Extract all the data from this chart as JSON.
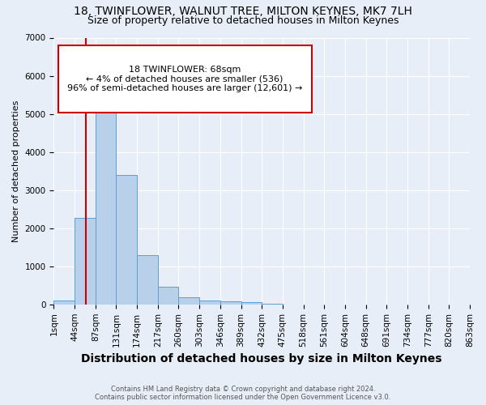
{
  "title": "18, TWINFLOWER, WALNUT TREE, MILTON KEYNES, MK7 7LH",
  "subtitle": "Size of property relative to detached houses in Milton Keynes",
  "xlabel": "Distribution of detached houses by size in Milton Keynes",
  "ylabel": "Number of detached properties",
  "footer_line1": "Contains HM Land Registry data © Crown copyright and database right 2024.",
  "footer_line2": "Contains public sector information licensed under the Open Government Licence v3.0.",
  "bin_labels": [
    "1sqm",
    "44sqm",
    "87sqm",
    "131sqm",
    "174sqm",
    "217sqm",
    "260sqm",
    "303sqm",
    "346sqm",
    "389sqm",
    "432sqm",
    "475sqm",
    "518sqm",
    "561sqm",
    "604sqm",
    "648sqm",
    "691sqm",
    "734sqm",
    "777sqm",
    "820sqm",
    "863sqm"
  ],
  "bar_values": [
    100,
    2280,
    5400,
    3400,
    1300,
    460,
    180,
    100,
    80,
    50,
    10,
    5,
    3,
    2,
    1,
    1,
    0,
    0,
    0,
    0
  ],
  "bar_color": "#b8d0ea",
  "bar_edge_color": "#5a9fd4",
  "ylim": [
    0,
    7000
  ],
  "yticks": [
    0,
    1000,
    2000,
    3000,
    4000,
    5000,
    6000,
    7000
  ],
  "annotation_text": "18 TWINFLOWER: 68sqm\n← 4% of detached houses are smaller (536)\n96% of semi-detached houses are larger (12,601) →",
  "annotation_box_color": "#ffffff",
  "annotation_border_color": "#cc0000",
  "vline_color": "#cc0000",
  "vline_x": 1.56,
  "title_fontsize": 10,
  "subtitle_fontsize": 9,
  "xlabel_fontsize": 10,
  "ylabel_fontsize": 8,
  "tick_fontsize": 7.5,
  "annotation_fontsize": 8,
  "footer_fontsize": 6,
  "bg_color": "#e8eef8",
  "plot_bg_color": "#e8eef8",
  "grid_color": "#ffffff"
}
